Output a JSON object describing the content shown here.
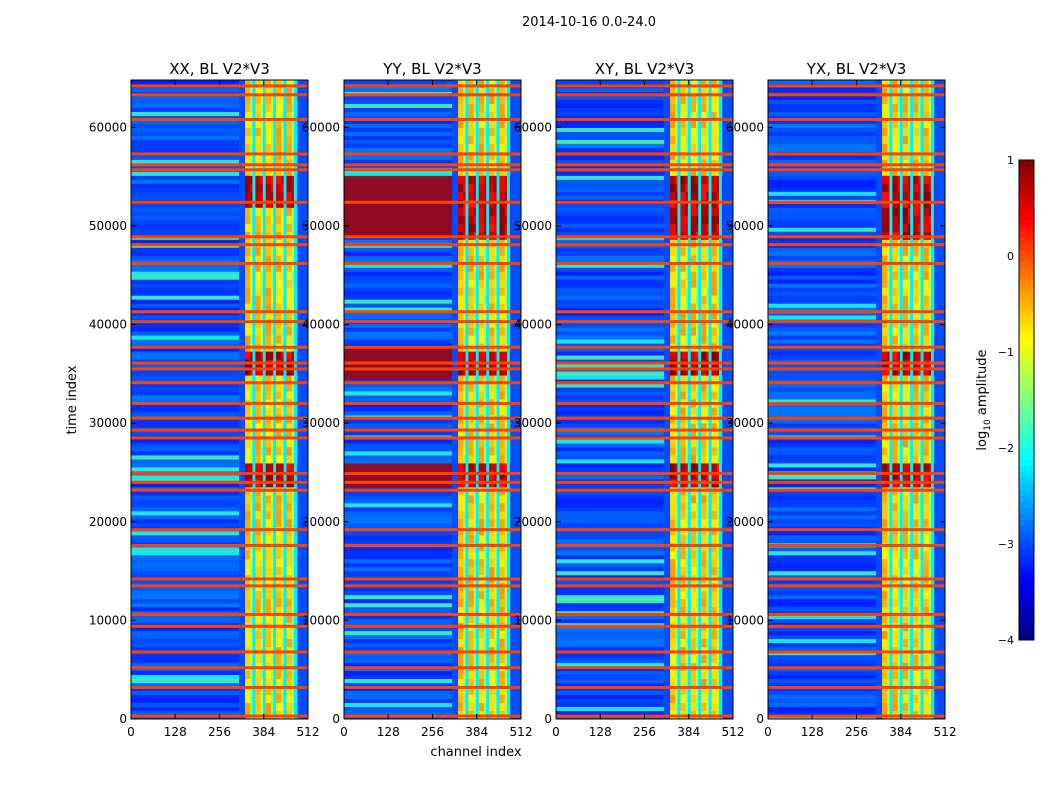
{
  "chart_data": {
    "type": "heatmap",
    "suptitle": "2014-10-16 0.0-24.0",
    "xlabel": "channel index",
    "ylabel": "time index",
    "xlim": [
      0,
      512
    ],
    "ylim": [
      0,
      64800
    ],
    "x_ticks": [
      "0",
      "128",
      "256",
      "384",
      "512"
    ],
    "y_ticks": [
      "0",
      "10000",
      "20000",
      "30000",
      "40000",
      "50000",
      "60000"
    ],
    "y_tick_values": [
      0,
      10000,
      20000,
      30000,
      40000,
      50000,
      60000
    ],
    "x_tick_values": [
      0,
      128,
      256,
      384,
      512
    ],
    "colorbar": {
      "label": "log10 amplitude",
      "label_main": "log",
      "label_sub": "10",
      "label_rest": " amplitude",
      "range": [
        -4,
        1
      ],
      "ticks": [
        "1",
        "0",
        "−1",
        "−2",
        "−3",
        "−4"
      ],
      "tick_values": [
        1,
        0,
        -1,
        -2,
        -3,
        -4
      ],
      "colormap": "jet"
    },
    "panels": [
      {
        "title": "XX, BL V2*V3",
        "pol": "XX",
        "baseline": "V2*V3",
        "strong_bursts": [
          [
            23500,
            26000
          ],
          [
            34500,
            37500
          ],
          [
            51500,
            55000
          ]
        ]
      },
      {
        "title": "YY, BL V2*V3",
        "pol": "YY",
        "baseline": "V2*V3",
        "strong_bursts": [
          [
            23500,
            26000
          ],
          [
            34500,
            37500
          ],
          [
            49000,
            55000
          ]
        ]
      },
      {
        "title": "XY, BL V2*V3",
        "pol": "XY",
        "baseline": "V2*V3",
        "strong_bursts": [
          [
            23500,
            26000
          ],
          [
            34500,
            37500
          ],
          [
            49000,
            55000
          ]
        ]
      },
      {
        "title": "YX, BL V2*V3",
        "pol": "YX",
        "baseline": "V2*V3",
        "strong_bursts": [
          [
            23500,
            26000
          ],
          [
            34500,
            37500
          ],
          [
            49000,
            55000
          ]
        ]
      }
    ],
    "rfi_band": {
      "channel_start": 330,
      "channel_end": 480,
      "level_range": [
        -1.5,
        0
      ]
    },
    "flagged_rows": [
      300,
      3200,
      5200,
      6800,
      9400,
      10600,
      13500,
      14200,
      17600,
      19200,
      23200,
      24000,
      24900,
      28500,
      29300,
      30500,
      32000,
      34100,
      35500,
      36100,
      37700,
      40300,
      41300,
      46200,
      48100,
      48900,
      52400,
      55700,
      56200,
      57300,
      60800,
      63300,
      64200
    ],
    "background_level": -3
  }
}
